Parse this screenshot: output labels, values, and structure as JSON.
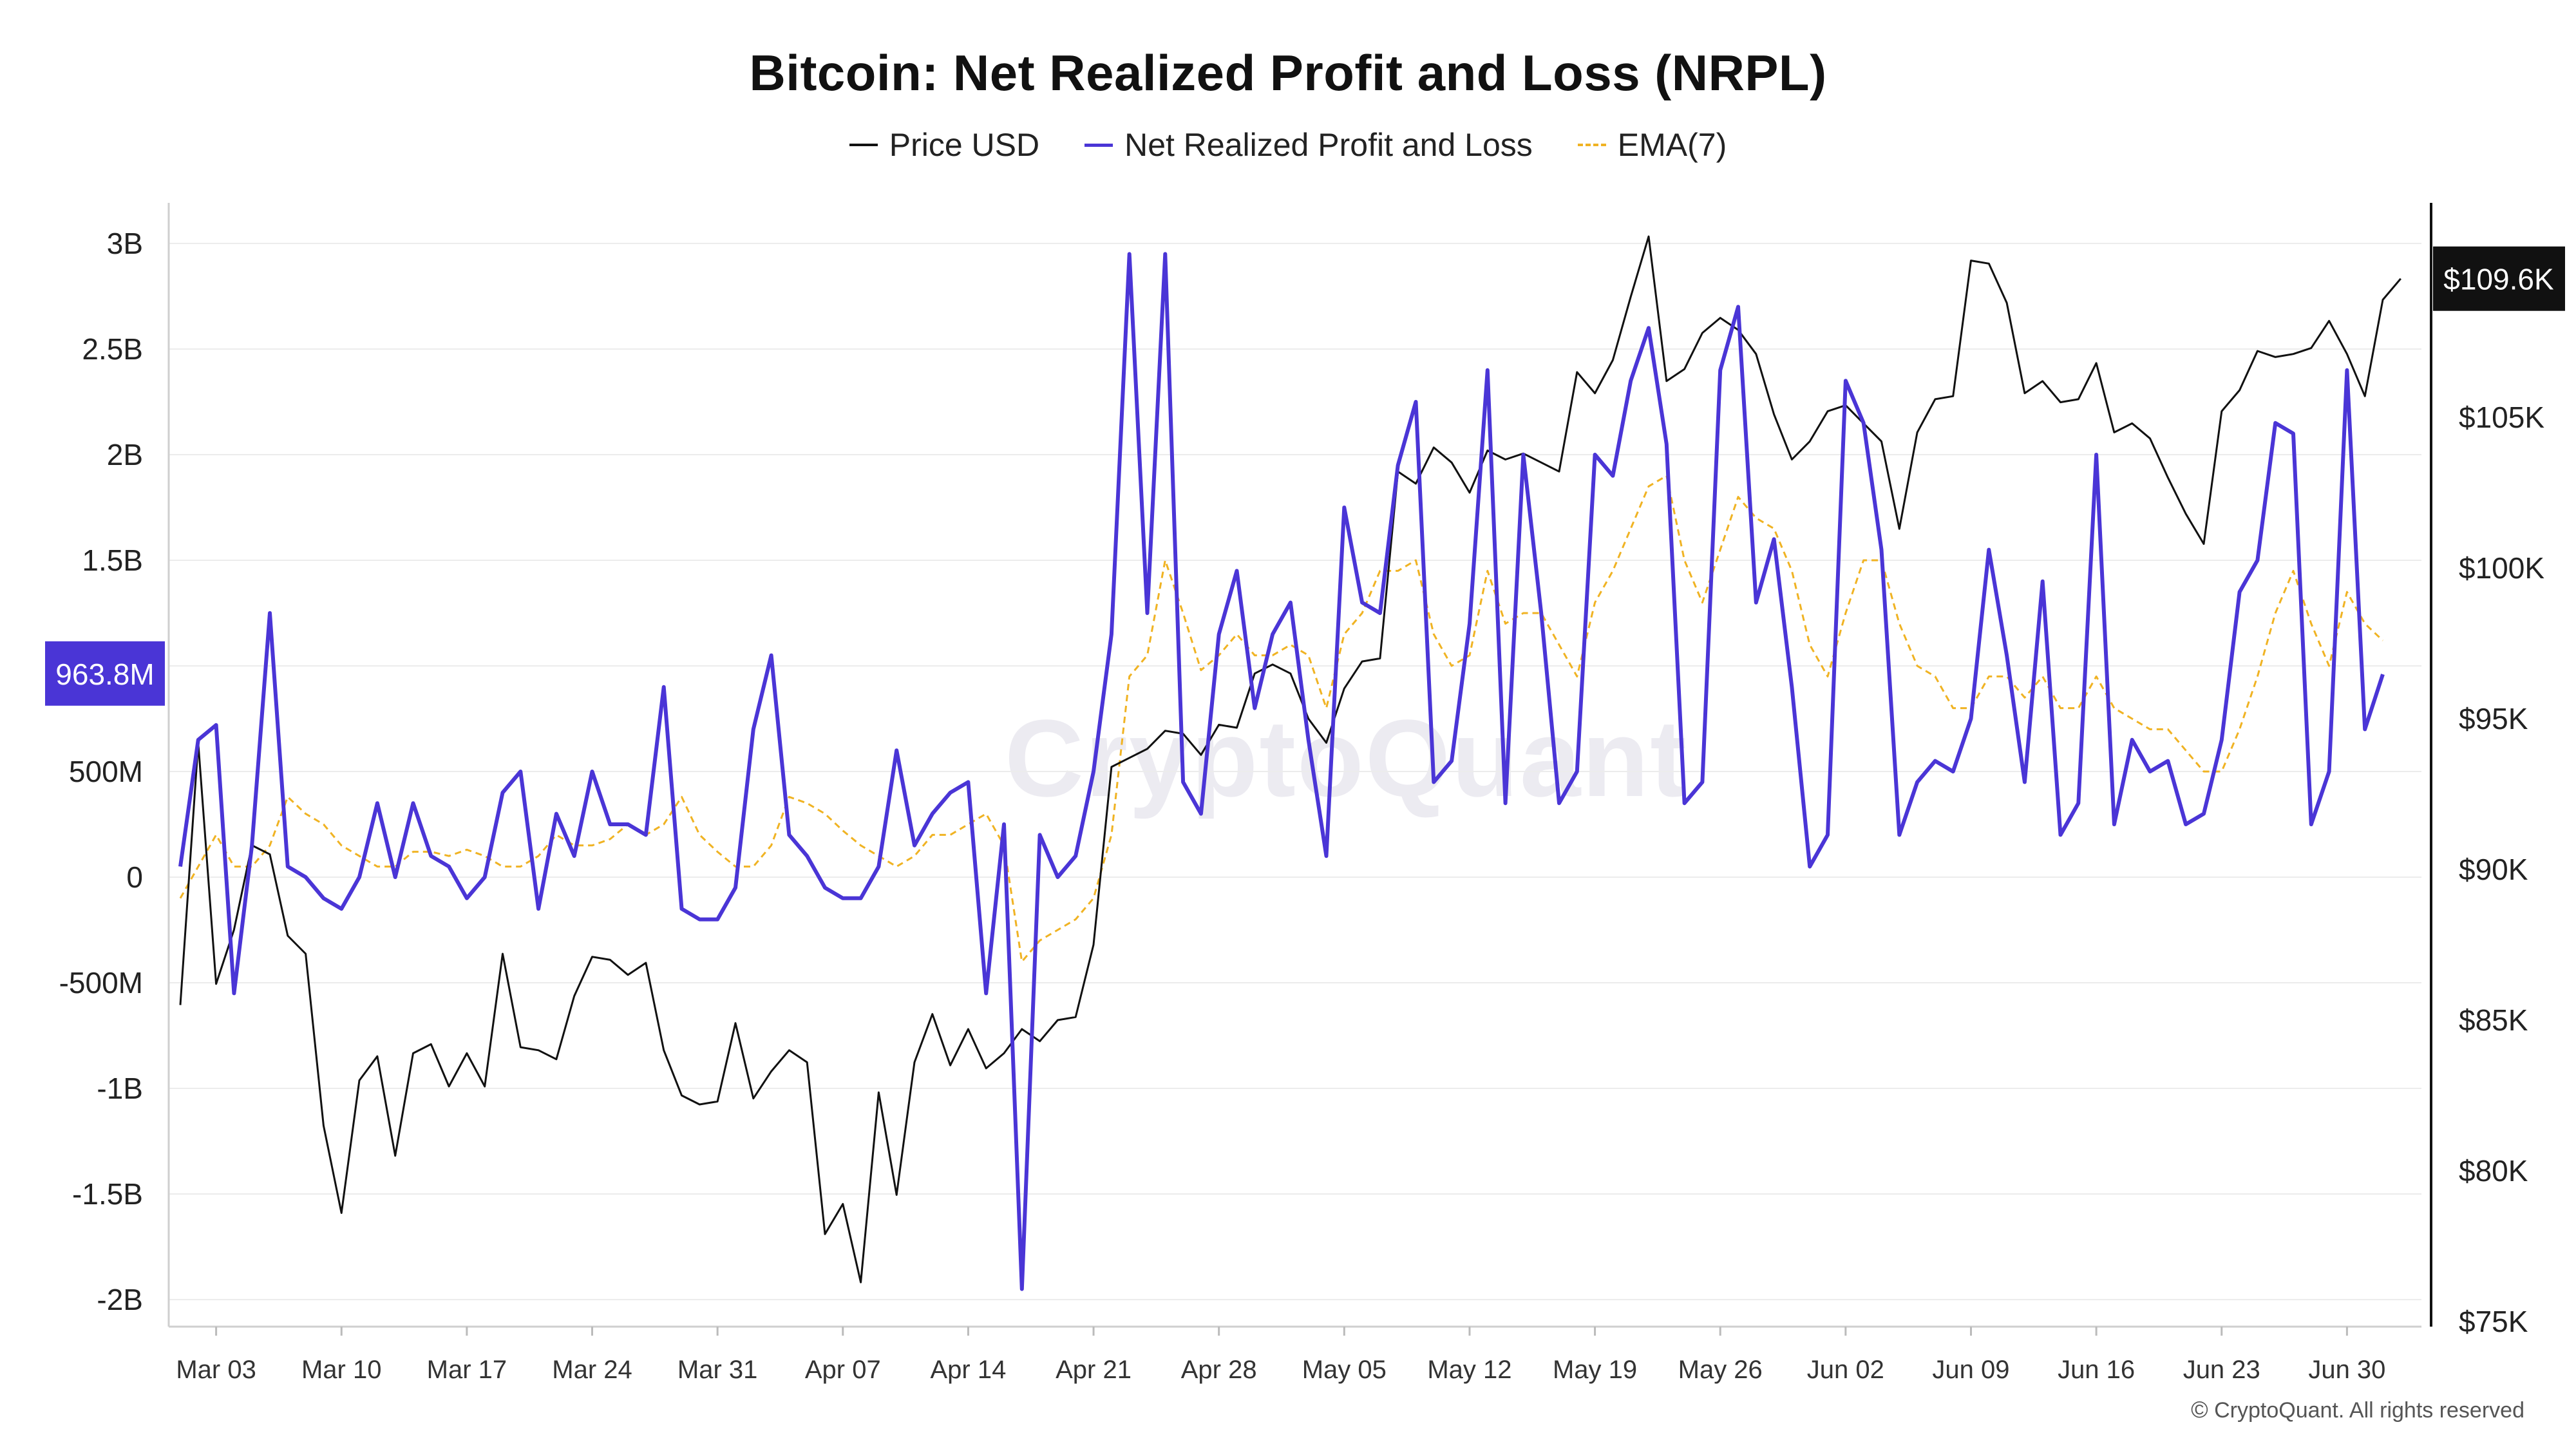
{
  "header": {
    "title": "Bitcoin: Net Realized Profit and Loss (NRPL)"
  },
  "legend": [
    {
      "label": "Price USD",
      "color": "#111111",
      "style": "solid"
    },
    {
      "label": "Net Realized Profit and Loss",
      "color": "#4a35d6",
      "style": "solid"
    },
    {
      "label": "EMA(7)",
      "color": "#f0b323",
      "style": "dashed"
    }
  ],
  "watermark": "CryptoQuant",
  "footer": {
    "copyright": "CryptoQuant. All rights reserved"
  },
  "chart_data": {
    "type": "line",
    "title": "Bitcoin: Net Realized Profit and Loss (NRPL)",
    "start_date": "2025-03-01",
    "x_tick_labels": [
      "Mar 03",
      "Mar 10",
      "Mar 17",
      "Mar 24",
      "Mar 31",
      "Apr 07",
      "Apr 14",
      "Apr 21",
      "Apr 28",
      "May 05",
      "May 12",
      "May 19",
      "May 26",
      "Jun 02",
      "Jun 09",
      "Jun 16",
      "Jun 23",
      "Jun 30"
    ],
    "left_axis": {
      "ylim": [
        -2.2,
        3.1
      ],
      "unit": "B",
      "tick_labels": [
        "3B",
        "2.5B",
        "2B",
        "1.5B",
        "1B",
        "500M",
        "0",
        "-500M",
        "-1B",
        "-1.5B",
        "-2B"
      ],
      "tick_values": [
        3,
        2.5,
        2,
        1.5,
        1,
        0.5,
        0,
        -0.5,
        -1,
        -1.5,
        -2
      ]
    },
    "right_axis": {
      "ylim": [
        75,
        112
      ],
      "unit": "K USD",
      "tick_labels": [
        "$105K",
        "$100K",
        "$95K",
        "$90K",
        "$85K",
        "$80K",
        "$75K"
      ],
      "tick_values": [
        105,
        100,
        95,
        90,
        85,
        80,
        75
      ]
    },
    "last_value_badges": {
      "left": {
        "label": "963.8M",
        "color": "#4a35d6",
        "value": 0.964
      },
      "right": {
        "label": "$109.6K",
        "color": "#111111",
        "value": 109.6
      }
    },
    "grid": true,
    "legend_position": "top",
    "series": [
      {
        "name": "Net Realized Profit and Loss",
        "axis": "left",
        "color": "#4a35d6",
        "style": "solid",
        "values": [
          0.05,
          0.65,
          0.72,
          -0.55,
          0.15,
          1.25,
          0.05,
          0.0,
          -0.1,
          -0.15,
          0.0,
          0.35,
          0.0,
          0.35,
          0.1,
          0.05,
          -0.1,
          0.0,
          0.4,
          0.5,
          -0.15,
          0.3,
          0.1,
          0.5,
          0.25,
          0.25,
          0.2,
          0.9,
          -0.15,
          -0.2,
          -0.2,
          -0.05,
          0.7,
          1.05,
          0.2,
          0.1,
          -0.05,
          -0.1,
          -0.1,
          0.05,
          0.6,
          0.15,
          0.3,
          0.4,
          0.45,
          -0.55,
          0.25,
          -1.95,
          0.2,
          0.0,
          0.1,
          0.5,
          1.15,
          2.95,
          1.25,
          2.95,
          0.45,
          0.3,
          1.15,
          1.45,
          0.8,
          1.15,
          1.3,
          0.65,
          0.1,
          1.75,
          1.3,
          1.25,
          1.95,
          2.25,
          0.45,
          0.55,
          1.2,
          2.4,
          0.35,
          2.0,
          1.25,
          0.35,
          0.5,
          2.0,
          1.9,
          2.35,
          2.6,
          2.05,
          0.35,
          0.45,
          2.4,
          2.7,
          1.3,
          1.6,
          0.9,
          0.05,
          0.2,
          2.35,
          2.15,
          1.55,
          0.2,
          0.45,
          0.55,
          0.5,
          0.75,
          1.55,
          1.05,
          0.45,
          1.4,
          0.2,
          0.35,
          2.0,
          0.25,
          0.65,
          0.5,
          0.55,
          0.25,
          0.3,
          0.65,
          1.35,
          1.5,
          2.15,
          2.1,
          0.25,
          0.5,
          2.4,
          0.7,
          0.96
        ]
      },
      {
        "name": "EMA(7)",
        "axis": "left",
        "color": "#f0b323",
        "style": "dashed",
        "values": [
          -0.1,
          0.05,
          0.2,
          0.05,
          0.05,
          0.15,
          0.38,
          0.3,
          0.25,
          0.15,
          0.1,
          0.05,
          0.05,
          0.12,
          0.12,
          0.1,
          0.13,
          0.1,
          0.05,
          0.05,
          0.1,
          0.2,
          0.15,
          0.15,
          0.18,
          0.25,
          0.2,
          0.25,
          0.38,
          0.2,
          0.12,
          0.05,
          0.05,
          0.15,
          0.38,
          0.35,
          0.3,
          0.22,
          0.15,
          0.1,
          0.05,
          0.1,
          0.2,
          0.2,
          0.25,
          0.3,
          0.15,
          -0.4,
          -0.3,
          -0.25,
          -0.2,
          -0.1,
          0.2,
          0.95,
          1.05,
          1.5,
          1.25,
          0.98,
          1.05,
          1.15,
          1.05,
          1.05,
          1.1,
          1.05,
          0.8,
          1.15,
          1.25,
          1.45,
          1.45,
          1.5,
          1.15,
          1.0,
          1.05,
          1.45,
          1.2,
          1.25,
          1.25,
          1.1,
          0.95,
          1.3,
          1.45,
          1.65,
          1.85,
          1.9,
          1.5,
          1.3,
          1.55,
          1.8,
          1.7,
          1.65,
          1.45,
          1.1,
          0.95,
          1.25,
          1.5,
          1.5,
          1.2,
          1.0,
          0.95,
          0.8,
          0.8,
          0.95,
          0.95,
          0.85,
          0.95,
          0.8,
          0.8,
          0.95,
          0.8,
          0.75,
          0.7,
          0.7,
          0.6,
          0.5,
          0.5,
          0.7,
          0.95,
          1.25,
          1.45,
          1.2,
          1.0,
          1.35,
          1.2,
          1.12
        ]
      },
      {
        "name": "Price USD",
        "axis": "right",
        "color": "#111111",
        "style": "solid",
        "values": [
          85.5,
          94.2,
          86.2,
          88.0,
          90.8,
          90.5,
          87.8,
          87.2,
          81.5,
          78.6,
          83.0,
          83.8,
          80.5,
          83.9,
          84.2,
          82.8,
          83.9,
          82.8,
          87.2,
          84.1,
          84.0,
          83.7,
          85.8,
          87.1,
          87.0,
          86.5,
          86.9,
          84.0,
          82.5,
          82.2,
          82.3,
          84.9,
          82.4,
          83.3,
          84.0,
          83.6,
          77.9,
          78.9,
          76.3,
          82.6,
          79.2,
          83.6,
          85.2,
          83.5,
          84.7,
          83.4,
          83.9,
          84.7,
          84.3,
          85.0,
          85.1,
          87.5,
          93.4,
          93.7,
          94.0,
          94.6,
          94.5,
          93.8,
          94.8,
          94.7,
          96.5,
          96.8,
          96.5,
          95.0,
          94.2,
          96.0,
          96.9,
          97.0,
          103.2,
          102.8,
          104.0,
          103.5,
          102.5,
          103.9,
          103.6,
          103.8,
          103.5,
          103.2,
          106.5,
          105.8,
          106.9,
          109.0,
          111.0,
          106.2,
          106.6,
          107.8,
          108.3,
          107.9,
          107.1,
          105.1,
          103.6,
          104.2,
          105.2,
          105.4,
          104.8,
          104.2,
          101.3,
          104.5,
          105.6,
          105.7,
          110.2,
          110.1,
          108.8,
          105.8,
          106.2,
          105.5,
          105.6,
          106.8,
          104.5,
          104.8,
          104.3,
          103.0,
          101.8,
          100.8,
          105.2,
          105.9,
          107.2,
          107.0,
          107.1,
          107.3,
          108.2,
          107.1,
          105.7,
          108.9,
          109.6
        ]
      }
    ]
  }
}
